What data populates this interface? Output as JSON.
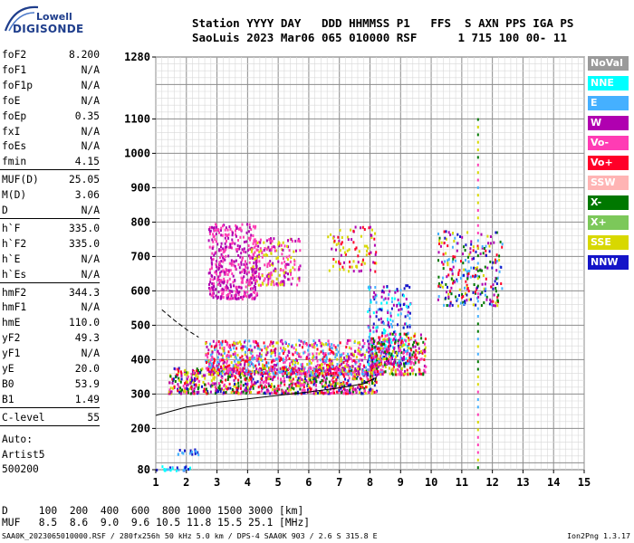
{
  "logo": {
    "line1": "Lowell",
    "line2": "DIGISONDE"
  },
  "header": {
    "line1": "Station YYYY DAY   DDD HHMMSS P1   FFS  S AXN PPS IGA PS",
    "line2": "SaoLuis 2023 Mar06 065 010000 RSF      1 715 100 00- 11"
  },
  "params": [
    {
      "key": "foF2",
      "value": "8.200"
    },
    {
      "key": "foF1",
      "value": "N/A"
    },
    {
      "key": "foF1p",
      "value": "N/A"
    },
    {
      "key": "foE",
      "value": "N/A"
    },
    {
      "key": "foEp",
      "value": "0.35"
    },
    {
      "key": "fxI",
      "value": "N/A"
    },
    {
      "key": "foEs",
      "value": "N/A"
    },
    {
      "key": "fmin",
      "value": "4.15"
    },
    {
      "key": "MUF(D)",
      "value": "25.05"
    },
    {
      "key": "M(D)",
      "value": "3.06"
    },
    {
      "key": "D",
      "value": "N/A"
    },
    {
      "key": "h`F",
      "value": "335.0"
    },
    {
      "key": "h`F2",
      "value": "335.0"
    },
    {
      "key": "h`E",
      "value": "N/A"
    },
    {
      "key": "h`Es",
      "value": "N/A"
    },
    {
      "key": "hmF2",
      "value": "344.3"
    },
    {
      "key": "hmF1",
      "value": "N/A"
    },
    {
      "key": "hmE",
      "value": "110.0"
    },
    {
      "key": "yF2",
      "value": "49.3"
    },
    {
      "key": "yF1",
      "value": "N/A"
    },
    {
      "key": "yE",
      "value": "20.0"
    },
    {
      "key": "B0",
      "value": "53.9"
    },
    {
      "key": "B1",
      "value": "1.49"
    },
    {
      "key": "C-level",
      "value": "55"
    }
  ],
  "autoscale": {
    "line1": "Auto:",
    "line2": "Artist5",
    "line3": "500200"
  },
  "legend": [
    {
      "label": "NoVal",
      "color": "#9a9a9a"
    },
    {
      "label": "NNE",
      "color": "#00ffff"
    },
    {
      "label": "E",
      "color": "#45b0ff"
    },
    {
      "label": "W",
      "color": "#b000b0"
    },
    {
      "label": "Vo-",
      "color": "#ff3cb4"
    },
    {
      "label": "Vo+",
      "color": "#ff0028"
    },
    {
      "label": "SSW",
      "color": "#ffb4b4"
    },
    {
      "label": "X-",
      "color": "#007800"
    },
    {
      "label": "X+",
      "color": "#7cc85a"
    },
    {
      "label": "SSE",
      "color": "#d8d800"
    },
    {
      "label": "NNW",
      "color": "#1414c8"
    }
  ],
  "footer": {
    "d_line": "D     100  200  400  600  800 1000 1500 3000 [km]",
    "muf_line": "MUF   8.5  8.6  9.0  9.6 10.5 11.8 15.5 25.1 [MHz]",
    "file_line": "SAA0K_2023065010000.RSF / 280fx256h 50 kHz 5.0 km / DPS-4 SAA0K 903 / 2.6 S 315.8 E",
    "version": "Ion2Png 1.3.17"
  },
  "chart_data": {
    "type": "scatter",
    "title": "",
    "xlabel": "",
    "ylabel": "",
    "xlim": [
      1,
      15
    ],
    "ylim": [
      80,
      1280
    ],
    "x_ticks": [
      1,
      2,
      3,
      4,
      5,
      6,
      7,
      8,
      9,
      10,
      11,
      12,
      13,
      14,
      15
    ],
    "y_ticks": [
      80,
      200,
      300,
      400,
      500,
      600,
      700,
      800,
      900,
      1000,
      1100,
      1280
    ],
    "grid": true,
    "legend_position": "right",
    "clusters": [
      {
        "name": "E",
        "x": [
          1.0,
          2.1
        ],
        "y": [
          80,
          95
        ],
        "n": 25,
        "colors": [
          "#1414c8",
          "#45b0ff",
          "#00ffff"
        ]
      },
      {
        "name": "E",
        "x": [
          1.7,
          2.4
        ],
        "y": [
          125,
          142
        ],
        "n": 18,
        "colors": [
          "#1414c8",
          "#45b0ff"
        ]
      },
      {
        "name": "o",
        "x": [
          1.4,
          8.2
        ],
        "y": [
          305,
          380
        ],
        "n": 900,
        "colors": [
          "#ff0028",
          "#b000b0",
          "#d8d800",
          "#ff3cb4",
          "#1414c8",
          "#007800"
        ]
      },
      {
        "name": "o",
        "x": [
          2.6,
          8.4
        ],
        "y": [
          360,
          460
        ],
        "n": 900,
        "colors": [
          "#b000b0",
          "#ff3cb4",
          "#ff0028",
          "#d8d800",
          "#45b0ff"
        ]
      },
      {
        "name": "W",
        "x": [
          2.7,
          4.3
        ],
        "y": [
          580,
          800
        ],
        "n": 420,
        "colors": [
          "#b000b0",
          "#ff3cb4"
        ]
      },
      {
        "name": "W",
        "x": [
          4.0,
          5.7
        ],
        "y": [
          620,
          760
        ],
        "n": 220,
        "colors": [
          "#b000b0",
          "#ff3cb4",
          "#d8d800"
        ]
      },
      {
        "name": "W",
        "x": [
          6.6,
          8.2
        ],
        "y": [
          660,
          790
        ],
        "n": 90,
        "colors": [
          "#ff0028",
          "#b000b0",
          "#d8d800"
        ]
      },
      {
        "name": "NNE",
        "x": [
          7.9,
          9.3
        ],
        "y": [
          390,
          620
        ],
        "n": 260,
        "colors": [
          "#45b0ff",
          "#00ffff",
          "#1414c8",
          "#b000b0"
        ]
      },
      {
        "name": "x",
        "x": [
          8.0,
          9.8
        ],
        "y": [
          360,
          480
        ],
        "n": 280,
        "colors": [
          "#ff0028",
          "#b000b0",
          "#d8d800",
          "#007800",
          "#ff3cb4"
        ]
      },
      {
        "name": "x",
        "x": [
          10.2,
          12.3
        ],
        "y": [
          560,
          780
        ],
        "n": 260,
        "colors": [
          "#ff0028",
          "#007800",
          "#b000b0",
          "#d8d800",
          "#45b0ff",
          "#1414c8"
        ]
      }
    ],
    "traces": [
      {
        "name": "virtual height",
        "x": [
          1.0,
          2.0,
          3.0,
          4.0,
          5.0,
          6.0,
          7.0,
          7.8,
          8.2,
          8.15
        ],
        "y": [
          238,
          262,
          276,
          286,
          296,
          306,
          318,
          330,
          348,
          335
        ]
      },
      {
        "name": "upper",
        "x": [
          1.2,
          1.6,
          2.0,
          2.4
        ],
        "y": [
          545,
          515,
          488,
          465
        ]
      }
    ],
    "vertical_marker": {
      "x": 11.5,
      "y": [
        90,
        1110
      ]
    }
  }
}
